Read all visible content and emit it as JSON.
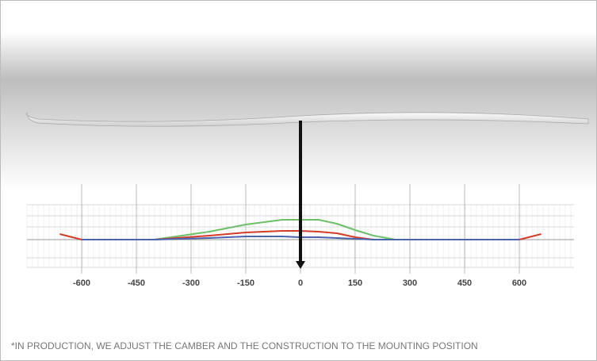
{
  "chart_data": {
    "type": "line",
    "x": [
      -660,
      -600,
      -400,
      -250,
      -150,
      -50,
      0,
      50,
      100,
      150,
      200,
      260,
      600,
      660
    ],
    "series": [
      {
        "color": "#6dbf6a",
        "values": [
          null,
          0,
          0,
          10,
          19,
          25,
          25,
          25,
          20,
          12,
          5,
          0,
          0,
          null
        ]
      },
      {
        "color": "#d43c2a",
        "values": [
          7,
          0,
          0,
          5,
          9,
          11,
          11,
          10,
          8,
          3,
          0,
          0,
          0,
          7
        ]
      },
      {
        "color": "#4a64b0",
        "values": [
          null,
          0,
          0,
          2,
          4,
          4,
          3,
          3,
          2,
          1,
          0,
          0,
          0,
          null
        ]
      }
    ],
    "xlim": [
      -750,
      750
    ],
    "xticks": [
      -600,
      -450,
      -300,
      -150,
      0,
      150,
      300,
      450,
      600
    ],
    "ylim": [
      -43,
      70
    ],
    "grid": true,
    "footnote": "*IN PRODUCTION, WE ADJUST THE CAMBER AND THE CONSTRUCTION TO THE MOUNTING POSITION"
  }
}
